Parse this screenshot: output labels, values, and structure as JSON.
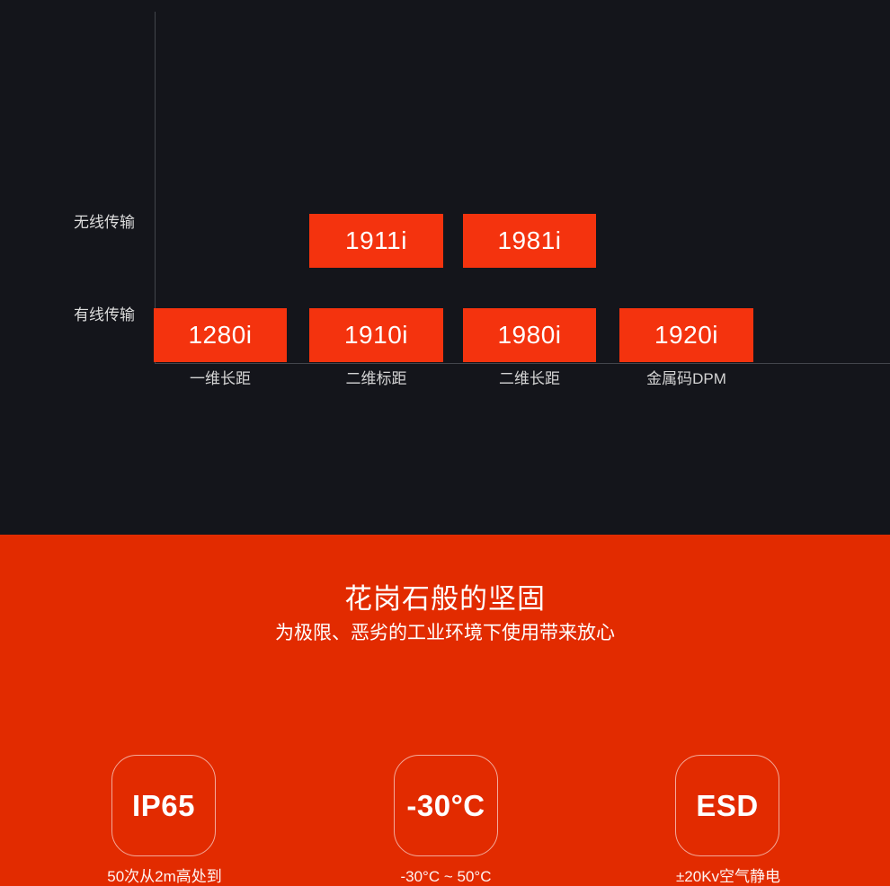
{
  "colors": {
    "dark_background": "#14151b",
    "axis_line": "#43454c",
    "model_box_red": "#f4330e",
    "section_red": "#e22b00",
    "text_white": "#ffffff",
    "label_gray": "#d4d4d4"
  },
  "matrix": {
    "row_labels": [
      "无线传输",
      "有线传输"
    ],
    "column_labels": [
      "一维长距",
      "二维标距",
      "二维长距",
      "金属码DPM"
    ],
    "wireless_models": [
      "1911i",
      "1981i"
    ],
    "wired_models": [
      "1280i",
      "1910i",
      "1980i",
      "1920i"
    ]
  },
  "durability": {
    "title": "花岗石般的坚固",
    "subtitle": "为极限、恶劣的工业环境下使用带来放心",
    "badges": [
      {
        "label": "IP65",
        "caption": "50次从2m高处到"
      },
      {
        "label": "-30°C",
        "caption": "-30°C ~ 50°C"
      },
      {
        "label": "ESD",
        "caption": "±20Kv空气静电"
      }
    ]
  }
}
